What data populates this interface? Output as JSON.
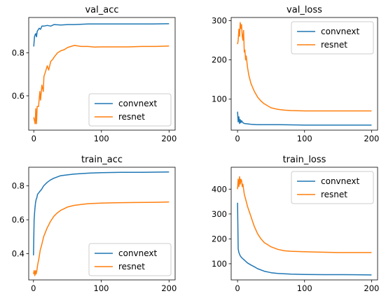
{
  "colors": {
    "convnext": "#1f77b4",
    "resnet": "#ff7f0e"
  },
  "chart_data": [
    {
      "type": "line",
      "title": "val_acc",
      "xlim": [
        -7.5,
        209
      ],
      "ylim": [
        0.44,
        0.965
      ],
      "xticks": [
        0,
        100,
        200
      ],
      "yticks": [
        0.6,
        0.8
      ],
      "ytick_labels": [
        "0.6",
        "0.8"
      ],
      "legend": "lower right",
      "series": [
        {
          "name": "convnext",
          "color": "#1f77b4",
          "x": [
            0,
            1,
            2,
            3,
            4,
            5,
            6,
            8,
            10,
            12,
            15,
            20,
            25,
            30,
            40,
            50,
            60,
            80,
            100,
            120,
            150,
            175,
            200
          ],
          "y": [
            0.83,
            0.875,
            0.885,
            0.89,
            0.875,
            0.9,
            0.905,
            0.915,
            0.91,
            0.925,
            0.925,
            0.928,
            0.925,
            0.932,
            0.93,
            0.932,
            0.932,
            0.935,
            0.935,
            0.935,
            0.935,
            0.935,
            0.936
          ]
        },
        {
          "name": "resnet",
          "color": "#ff7f0e",
          "x": [
            0,
            2,
            3,
            4,
            5,
            7,
            9,
            10,
            12,
            14,
            15,
            17,
            20,
            22,
            25,
            28,
            30,
            35,
            40,
            45,
            50,
            55,
            60,
            70,
            80,
            90,
            100,
            120,
            140,
            160,
            180,
            200
          ],
          "y": [
            0.5,
            0.47,
            0.54,
            0.47,
            0.55,
            0.55,
            0.62,
            0.58,
            0.65,
            0.62,
            0.69,
            0.71,
            0.74,
            0.72,
            0.76,
            0.77,
            0.78,
            0.8,
            0.81,
            0.815,
            0.825,
            0.83,
            0.835,
            0.83,
            0.83,
            0.827,
            0.828,
            0.828,
            0.828,
            0.83,
            0.83,
            0.832
          ]
        }
      ]
    },
    {
      "type": "line",
      "title": "val_loss",
      "xlim": [
        -9.5,
        209
      ],
      "ylim": [
        21,
        308
      ],
      "xticks": [
        0,
        100,
        200
      ],
      "yticks": [
        100,
        200,
        300
      ],
      "ytick_labels": [
        "100",
        "200",
        "300"
      ],
      "legend": "upper right",
      "series": [
        {
          "name": "convnext",
          "color": "#1f77b4",
          "x": [
            0,
            1,
            2,
            3,
            4,
            5,
            6,
            8,
            10,
            15,
            20,
            30,
            40,
            60,
            100,
            150,
            200
          ],
          "y": [
            68,
            42,
            55,
            38,
            48,
            40,
            45,
            40,
            38,
            37,
            36,
            35,
            35,
            35,
            34,
            34,
            34
          ]
        },
        {
          "name": "resnet",
          "color": "#ff7f0e",
          "x": [
            0,
            1,
            2,
            3,
            4,
            5,
            6,
            7,
            8,
            9,
            10,
            11,
            12,
            13,
            15,
            17,
            20,
            25,
            30,
            35,
            40,
            50,
            60,
            70,
            80,
            100,
            150,
            200
          ],
          "y": [
            240,
            250,
            278,
            260,
            295,
            280,
            290,
            260,
            250,
            275,
            220,
            225,
            200,
            210,
            180,
            160,
            140,
            120,
            105,
            95,
            88,
            78,
            74,
            72,
            71,
            70,
            70,
            70
          ]
        }
      ]
    },
    {
      "type": "line",
      "title": "train_acc",
      "xlim": [
        -7,
        209
      ],
      "ylim": [
        0.245,
        0.91
      ],
      "xticks": [
        0,
        100,
        200
      ],
      "yticks": [
        0.4,
        0.6,
        0.8
      ],
      "ytick_labels": [
        "0.4",
        "0.6",
        "0.8"
      ],
      "legend": "lower right",
      "series": [
        {
          "name": "convnext",
          "color": "#1f77b4",
          "x": [
            0,
            1,
            2,
            3,
            4,
            5,
            6,
            8,
            10,
            12,
            15,
            20,
            25,
            30,
            40,
            50,
            60,
            80,
            100,
            130,
            160,
            200
          ],
          "y": [
            0.39,
            0.6,
            0.66,
            0.7,
            0.72,
            0.73,
            0.75,
            0.76,
            0.77,
            0.78,
            0.8,
            0.82,
            0.835,
            0.845,
            0.86,
            0.865,
            0.87,
            0.875,
            0.878,
            0.88,
            0.88,
            0.882
          ]
        },
        {
          "name": "resnet",
          "color": "#ff7f0e",
          "x": [
            0,
            1,
            2,
            3,
            4,
            5,
            6,
            8,
            10,
            12,
            15,
            20,
            25,
            30,
            35,
            40,
            50,
            60,
            70,
            80,
            100,
            120,
            150,
            180,
            200
          ],
          "y": [
            0.28,
            0.3,
            0.27,
            0.3,
            0.28,
            0.3,
            0.33,
            0.37,
            0.42,
            0.45,
            0.5,
            0.55,
            0.59,
            0.62,
            0.64,
            0.655,
            0.675,
            0.685,
            0.69,
            0.695,
            0.698,
            0.7,
            0.702,
            0.703,
            0.705
          ]
        }
      ]
    },
    {
      "type": "line",
      "title": "train_loss",
      "xlim": [
        -9.5,
        209
      ],
      "ylim": [
        35,
        488
      ],
      "xticks": [
        0,
        100,
        200
      ],
      "yticks": [
        100,
        200,
        300,
        400
      ],
      "ytick_labels": [
        "100",
        "200",
        "300",
        "400"
      ],
      "legend": "upper right",
      "series": [
        {
          "name": "convnext",
          "color": "#1f77b4",
          "x": [
            0,
            1,
            2,
            3,
            4,
            5,
            6,
            8,
            10,
            12,
            15,
            20,
            25,
            30,
            40,
            50,
            60,
            80,
            100,
            130,
            160,
            200
          ],
          "y": [
            345,
            160,
            145,
            138,
            132,
            128,
            125,
            120,
            115,
            110,
            103,
            95,
            88,
            80,
            70,
            64,
            61,
            58,
            57,
            56,
            56,
            55
          ]
        },
        {
          "name": "resnet",
          "color": "#ff7f0e",
          "x": [
            0,
            1,
            2,
            3,
            4,
            5,
            6,
            7,
            8,
            9,
            10,
            12,
            15,
            20,
            25,
            30,
            35,
            40,
            50,
            60,
            70,
            80,
            100,
            120,
            150,
            180,
            200
          ],
          "y": [
            400,
            440,
            410,
            450,
            420,
            440,
            435,
            410,
            420,
            400,
            380,
            360,
            330,
            290,
            250,
            220,
            200,
            185,
            168,
            158,
            152,
            150,
            148,
            147,
            145,
            145,
            145
          ]
        }
      ]
    }
  ]
}
